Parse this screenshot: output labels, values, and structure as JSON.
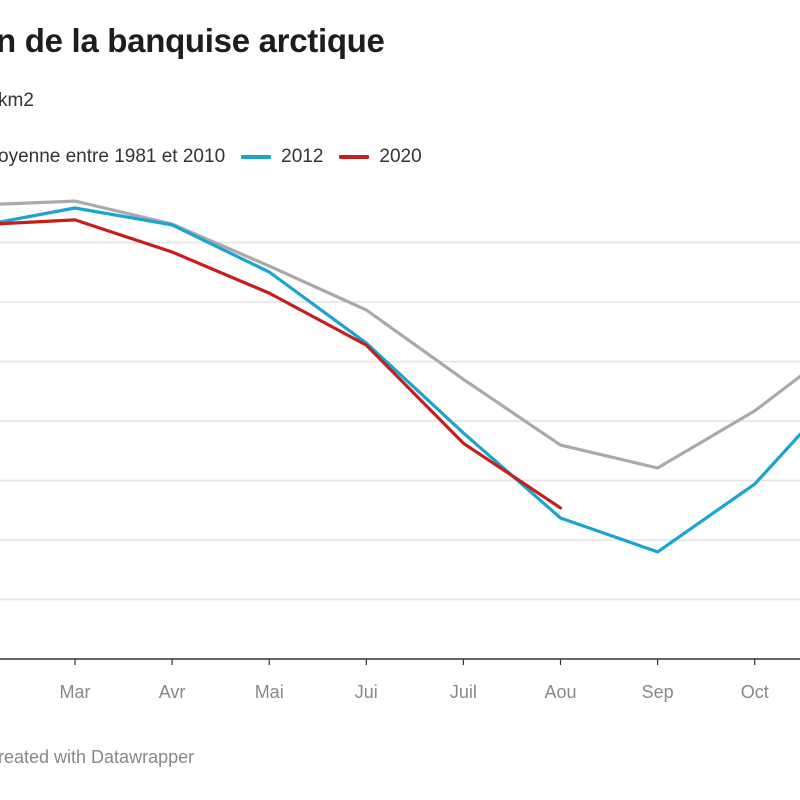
{
  "chart_data": {
    "type": "line",
    "title": "n de la banquise arctique",
    "subtitle": "km2",
    "ylabel": "",
    "xlabel": "",
    "ylim": [
      0,
      16
    ],
    "y_gridlines": [
      2,
      4,
      6,
      8,
      10,
      12,
      14
    ],
    "x": [
      2,
      3,
      4,
      5,
      6,
      7,
      8,
      9,
      10,
      11
    ],
    "ticks": [
      {
        "x": 3,
        "label": "Mar"
      },
      {
        "x": 4,
        "label": "Avr"
      },
      {
        "x": 5,
        "label": "Mai"
      },
      {
        "x": 6,
        "label": "Jui"
      },
      {
        "x": 7,
        "label": "Juil"
      },
      {
        "x": 8,
        "label": "Aou"
      },
      {
        "x": 9,
        "label": "Sep"
      },
      {
        "x": 10,
        "label": "Oct"
      }
    ],
    "series": [
      {
        "name": "oyenne entre 1981 et 2010",
        "color": "#aaaaaa",
        "values": [
          15.26,
          15.39,
          14.62,
          13.21,
          11.73,
          9.4,
          7.19,
          6.42,
          8.34,
          10.82
        ]
      },
      {
        "name": "2012",
        "color": "#1ba3d2",
        "values": [
          14.55,
          15.16,
          14.59,
          13.01,
          10.62,
          7.6,
          4.74,
          3.6,
          5.88,
          9.45
        ]
      },
      {
        "name": "2020",
        "color": "#c71e1d",
        "values": [
          14.59,
          14.76,
          13.68,
          12.3,
          10.55,
          7.25,
          5.08,
          null,
          null,
          null
        ]
      }
    ],
    "grid": true,
    "legend_position": "top-left"
  },
  "footer": "reated with Datawrapper"
}
